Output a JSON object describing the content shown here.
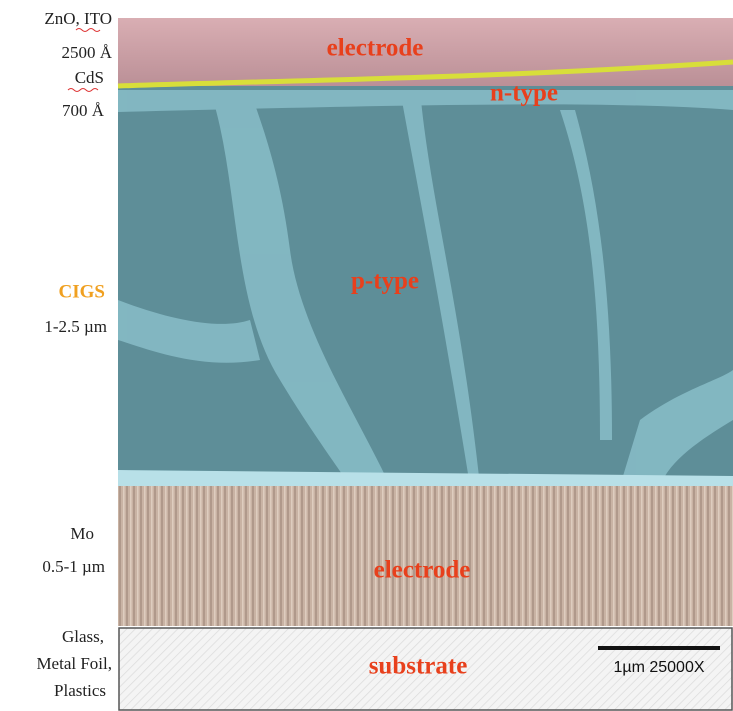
{
  "side_labels": {
    "window": [
      "ZnO, ITO",
      "2500 Å"
    ],
    "buffer": [
      "CdS",
      "700 Å"
    ],
    "absorber": [
      "CIGS",
      "1-2.5 µm"
    ],
    "back_contact": [
      "Mo",
      "0.5-1 µm"
    ],
    "substrate": [
      "Glass,",
      "Metal Foil,",
      "Plastics"
    ]
  },
  "layer_labels": {
    "top_electrode": "electrode",
    "buffer": "n-type",
    "absorber": "p-type",
    "back_electrode": "electrode",
    "substrate": "substrate"
  },
  "scale_bar": {
    "label": "1µm 25000X"
  }
}
